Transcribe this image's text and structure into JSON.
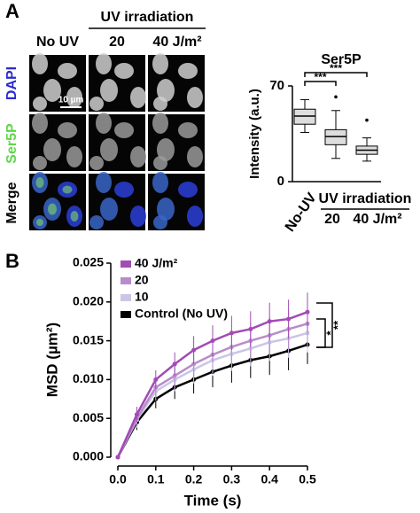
{
  "figure": {
    "panel_a_label": "A",
    "panel_b_label": "B",
    "header": "UV irradiation",
    "columns": [
      "No UV",
      "20",
      "40 J/m²"
    ],
    "rows": [
      "DAPI",
      "Ser5P",
      "Merge"
    ],
    "scale_bar": "10 µm"
  },
  "chart_data": [
    {
      "type": "box",
      "title": "Ser5P",
      "y_label": "Intensity (a.u.)",
      "group_label": "UV irradiation",
      "categories": [
        "No-UV",
        "20",
        "40 J/m²"
      ],
      "color": "#dddddd",
      "ylim": [
        0,
        70
      ],
      "yticks": [
        0,
        70
      ],
      "boxes": [
        {
          "whisker_low": 36,
          "q1": 42,
          "median": 48,
          "q3": 53,
          "whisker_high": 60,
          "outliers": []
        },
        {
          "whisker_low": 17,
          "q1": 27,
          "median": 33,
          "q3": 38,
          "whisker_high": 52,
          "outliers": [
            62
          ]
        },
        {
          "whisker_low": 15,
          "q1": 20,
          "median": 23,
          "q3": 26,
          "whisker_high": 32,
          "outliers": [
            45
          ]
        }
      ],
      "annotations": [
        "***",
        "***"
      ]
    },
    {
      "type": "line",
      "x_label": "Time (s)",
      "y_label": "MSD (µm²)",
      "x": [
        0,
        0.05,
        0.1,
        0.15,
        0.2,
        0.25,
        0.3,
        0.35,
        0.4,
        0.45,
        0.5
      ],
      "xlim": [
        0,
        0.5
      ],
      "ylim": [
        0,
        0.025
      ],
      "xticks": [
        {
          "value": 0,
          "label": "0.0"
        },
        0.1,
        0.2,
        0.3,
        0.4,
        0.5
      ],
      "yticks": [
        {
          "value": 0,
          "label": "0.000"
        },
        0.005,
        {
          "value": 0.01,
          "label": "0.010"
        },
        0.015,
        {
          "value": 0.02,
          "label": "0.020"
        },
        0.025
      ],
      "series": [
        {
          "name": "40 J/m²",
          "color": "#a24bb5",
          "values": [
            0,
            0.0055,
            0.01,
            0.012,
            0.0138,
            0.015,
            0.016,
            0.0165,
            0.0175,
            0.0178,
            0.0187
          ],
          "errors": [
            0,
            0.001,
            0.0012,
            0.0015,
            0.0018,
            0.002,
            0.0022,
            0.0023,
            0.0024,
            0.0025,
            0.0025
          ]
        },
        {
          "name": "20",
          "color": "#b88ccb",
          "values": [
            0,
            0.005,
            0.009,
            0.0105,
            0.012,
            0.0132,
            0.0142,
            0.015,
            0.0157,
            0.0165,
            0.0172
          ],
          "errors": [
            0,
            0.001,
            0.0012,
            0.0015,
            0.0018,
            0.002,
            0.0022,
            0.0023,
            0.0024,
            0.0025,
            0.0025
          ]
        },
        {
          "name": "10",
          "color": "#c9c6e6",
          "values": [
            0,
            0.0048,
            0.0085,
            0.01,
            0.0113,
            0.0125,
            0.0133,
            0.014,
            0.0148,
            0.0153,
            0.016
          ],
          "errors": [
            0,
            0.001,
            0.0012,
            0.0015,
            0.0018,
            0.002,
            0.0022,
            0.0023,
            0.0024,
            0.0025,
            0.0025
          ]
        },
        {
          "name": "Control (No UV)",
          "color": "#000000",
          "values": [
            0,
            0.0045,
            0.0075,
            0.009,
            0.01,
            0.011,
            0.0118,
            0.0125,
            0.013,
            0.0137,
            0.0145
          ],
          "errors": [
            0,
            0.001,
            0.0012,
            0.0015,
            0.0018,
            0.002,
            0.0022,
            0.0023,
            0.0024,
            0.0025,
            0.0025
          ]
        }
      ],
      "annotations": [
        "*",
        "**"
      ]
    }
  ]
}
